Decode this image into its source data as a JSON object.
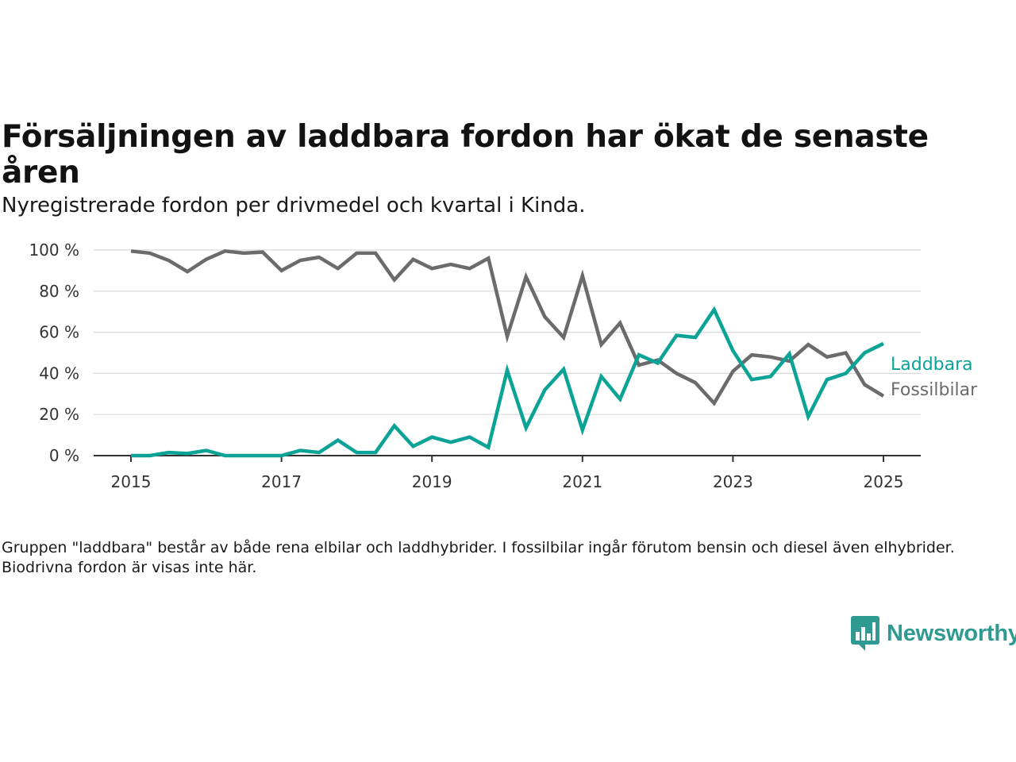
{
  "title": "Försäljningen av laddbara fordon har ökat de senaste åren",
  "subtitle": "Nyregistrerade fordon per drivmedel och kvartal i Kinda.",
  "footnote": "Gruppen \"laddbara\" består av både rena elbilar och laddhybrider. I fossilbilar ingår förutom bensin och diesel även elhybrider. Biodrivna fordon är visas inte här.",
  "brand": {
    "name": "Newsworthy",
    "icon": "newsworthy-logo-icon",
    "color": "#2f9a91"
  },
  "chart_data": {
    "type": "line",
    "x": [
      2015.0,
      2015.25,
      2015.5,
      2015.75,
      2016.0,
      2016.25,
      2016.5,
      2016.75,
      2017.0,
      2017.25,
      2017.5,
      2017.75,
      2018.0,
      2018.25,
      2018.5,
      2018.75,
      2019.0,
      2019.25,
      2019.5,
      2019.75,
      2020.0,
      2020.25,
      2020.5,
      2020.75,
      2021.0,
      2021.25,
      2021.5,
      2021.75,
      2022.0,
      2022.25,
      2022.5,
      2022.75,
      2023.0,
      2023.25,
      2023.5,
      2023.75,
      2024.0,
      2024.25,
      2024.5,
      2024.75,
      2025.0
    ],
    "xlim": [
      2014.5,
      2025.5
    ],
    "ylim": [
      0,
      100
    ],
    "x_ticks": [
      2015,
      2017,
      2019,
      2021,
      2023,
      2025
    ],
    "x_tick_labels": [
      "2015",
      "2017",
      "2019",
      "2021",
      "2023",
      "2025"
    ],
    "y_ticks": [
      0,
      20,
      40,
      60,
      80,
      100
    ],
    "y_tick_labels": [
      "0 %",
      "20 %",
      "40 %",
      "60 %",
      "80 %",
      "100 %"
    ],
    "grid": true,
    "legend": "direct labels at line ends (right)",
    "series": [
      {
        "name": "Laddbara",
        "color": "#0aa396",
        "values": [
          0,
          0,
          1.5,
          1,
          2.5,
          0,
          0,
          0,
          0,
          2.5,
          1.5,
          7.5,
          1.5,
          1.5,
          14.5,
          4.5,
          9,
          6.5,
          9,
          4,
          41.5,
          13.5,
          32,
          42,
          12.5,
          38.5,
          27.5,
          49,
          45,
          58.5,
          57.5,
          71,
          51,
          37,
          38.5,
          49.5,
          19,
          37,
          40,
          50,
          54.5
        ]
      },
      {
        "name": "Fossilbilar",
        "color": "#6b6b6e",
        "values": [
          99.5,
          98.5,
          95,
          89.5,
          95.5,
          99.5,
          98.5,
          99,
          90,
          95,
          96.5,
          91,
          98.5,
          98.5,
          85.5,
          95.5,
          91,
          93,
          91,
          96,
          58,
          87,
          67.5,
          57.5,
          87.5,
          54,
          64.5,
          44,
          46.5,
          40,
          35.5,
          25.5,
          41,
          49,
          48,
          46,
          54,
          48,
          50,
          34.5,
          29
        ]
      }
    ]
  }
}
